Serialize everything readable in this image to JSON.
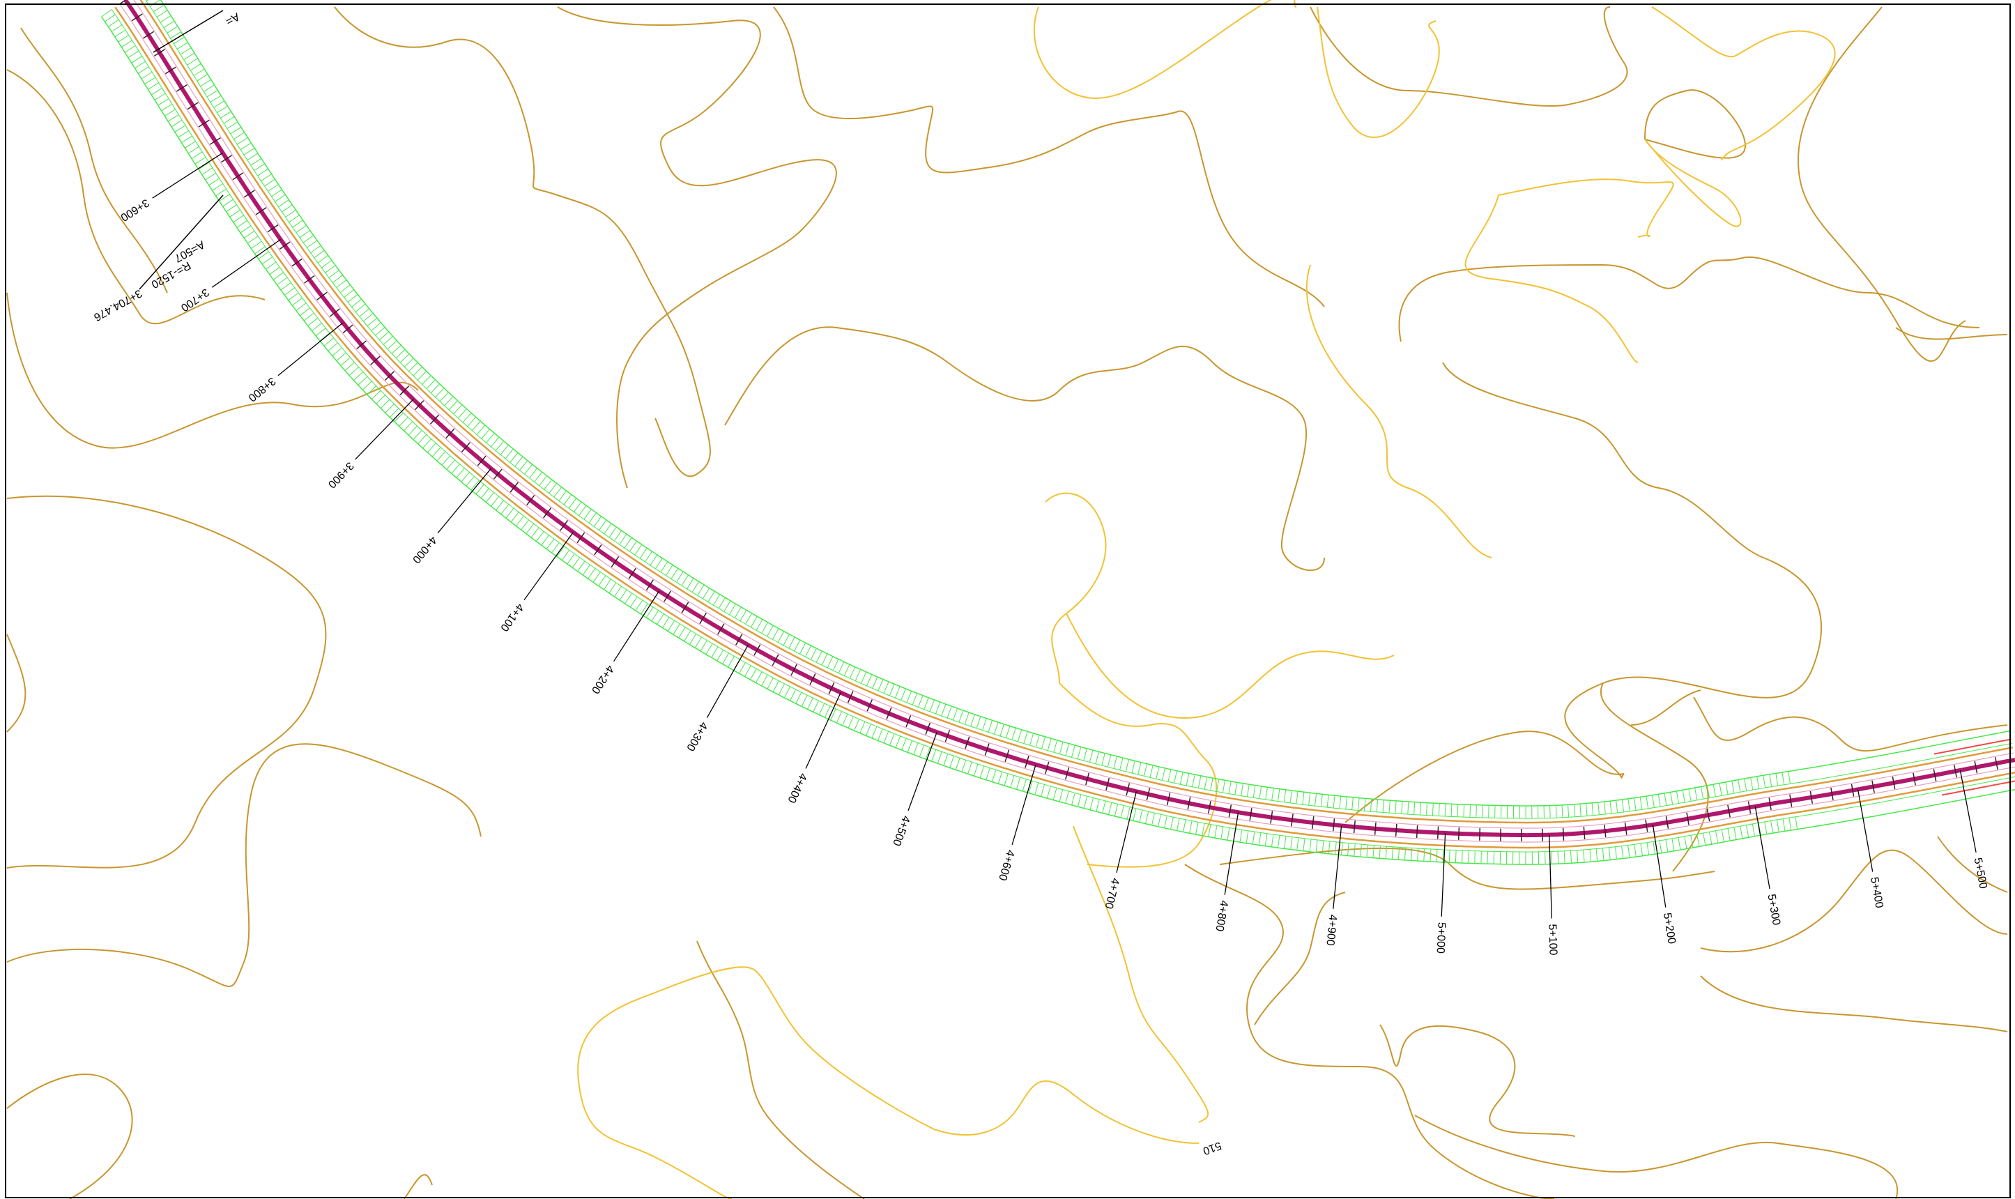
{
  "colors": {
    "background": "#ffffff",
    "border": "#000000",
    "contour_major": "#C8962E",
    "contour_minor": "#F2C233",
    "road_centerline": "#B0176C",
    "road_edge": "#E09A3A",
    "cut_fill_hatch": "#45E84A",
    "road_edge_end": "#F04848",
    "label_text": "#000000"
  },
  "alignment": {
    "curve_params": {
      "radius_label": "R=-1520",
      "clothoid_label": "A=507",
      "station_point_label": "3+704.476"
    },
    "top_partial_label": "A=",
    "stations": [
      "3+600",
      "3+700",
      "3+800",
      "3+900",
      "4+000",
      "4+100",
      "4+200",
      "4+300",
      "4+400",
      "4+500",
      "4+600",
      "4+700",
      "4+800",
      "4+900",
      "5+000",
      "5+100",
      "5+200",
      "5+300",
      "5+400",
      "5+500"
    ]
  },
  "contours": {
    "elevation_label": "510"
  }
}
